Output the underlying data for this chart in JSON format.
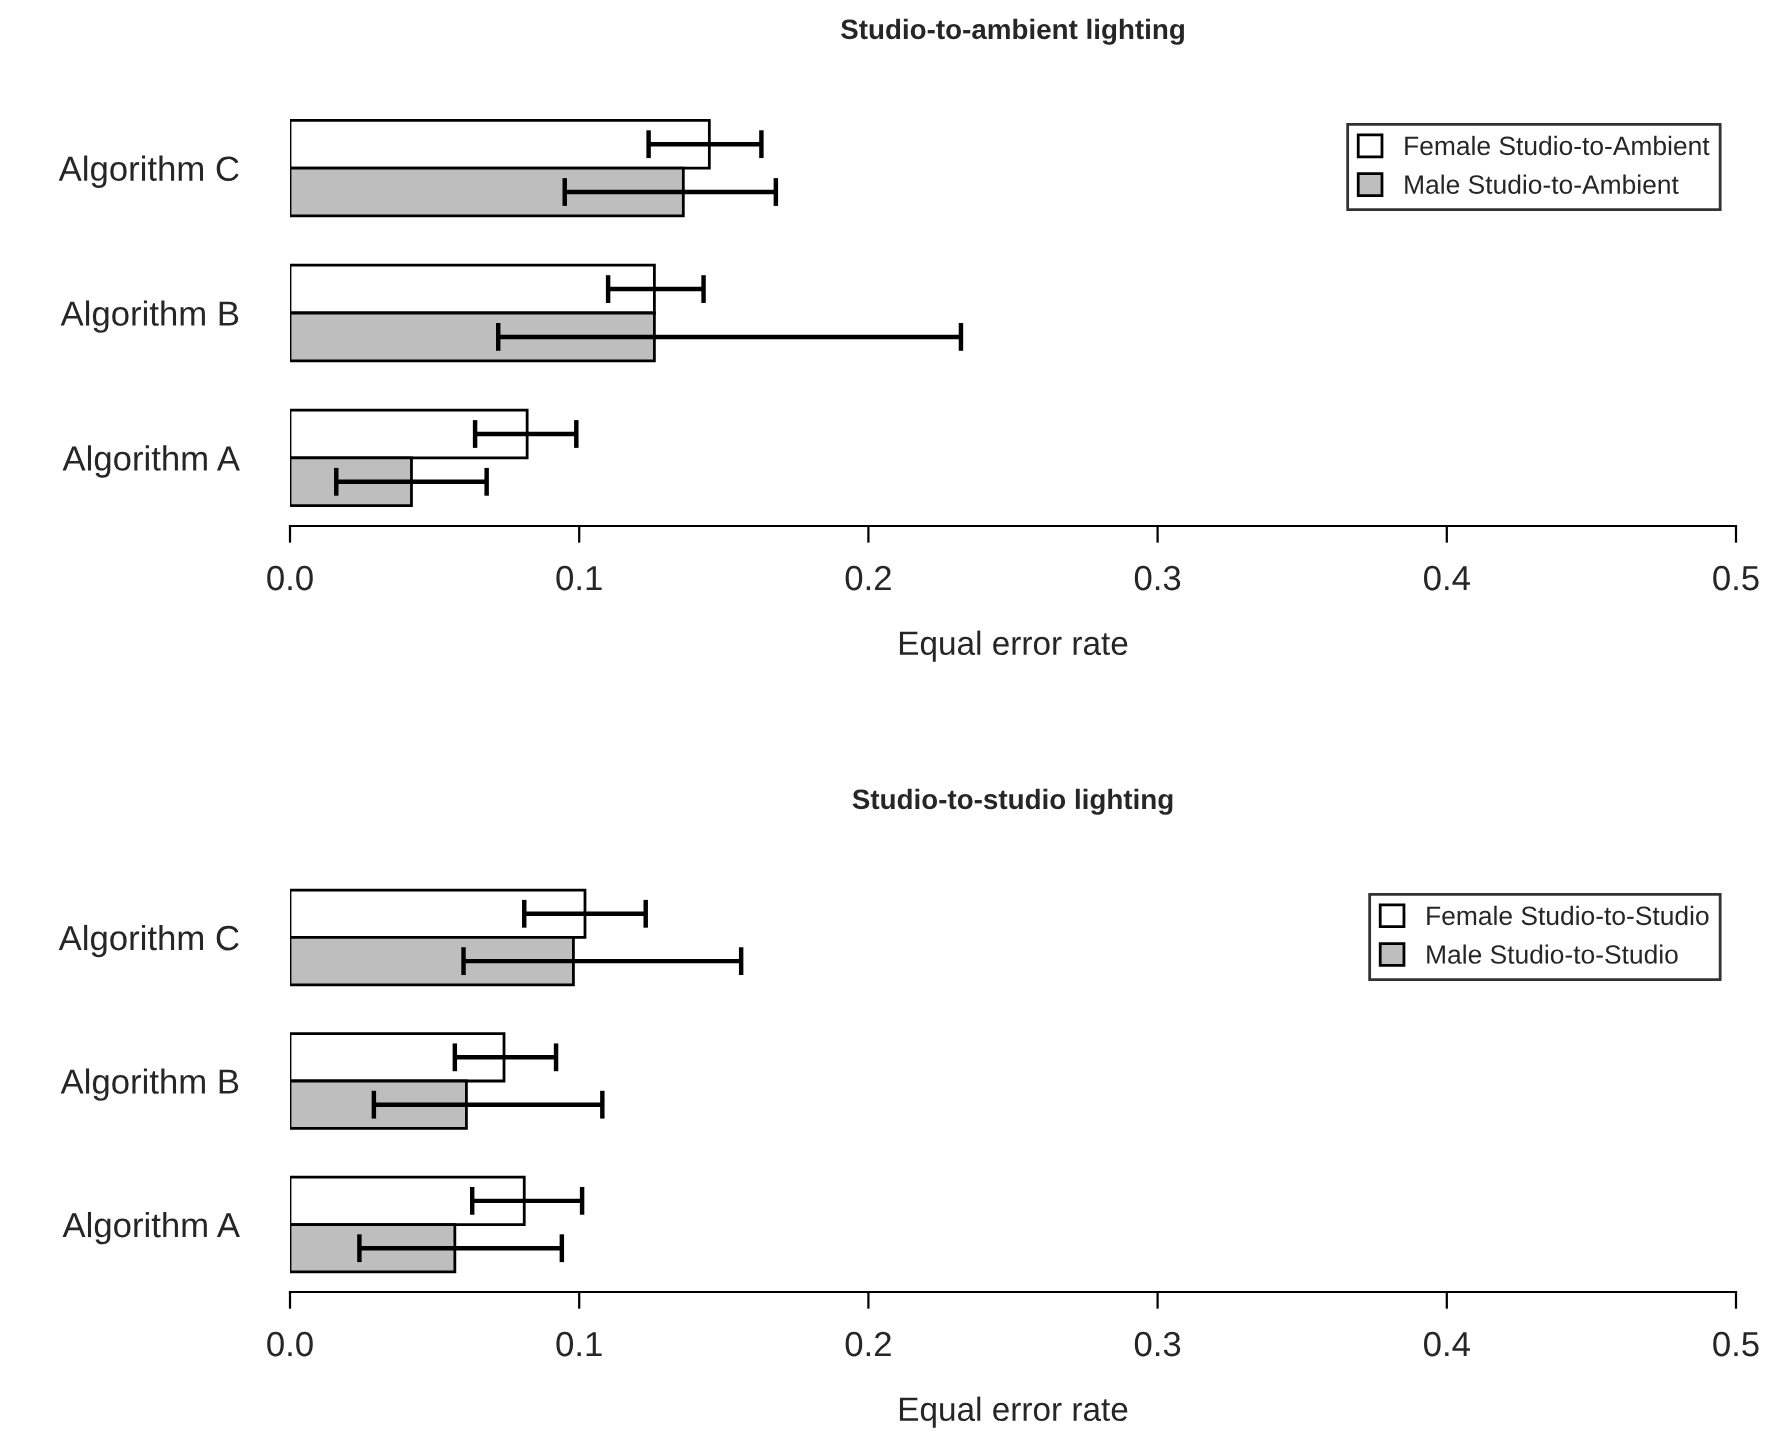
{
  "chart_data": [
    {
      "type": "bar",
      "orientation": "horizontal",
      "title": "Studio-to-ambient lighting",
      "xlabel": "Equal error rate",
      "categories": [
        "Algorithm C",
        "Algorithm B",
        "Algorithm A"
      ],
      "series": [
        {
          "name": "Female Studio-to-Ambient",
          "color": "#ffffff",
          "values": [
            0.145,
            0.126,
            0.082
          ],
          "errors": [
            [
              0.124,
              0.163
            ],
            [
              0.11,
              0.143
            ],
            [
              0.064,
              0.099
            ]
          ]
        },
        {
          "name": "Male Studio-to-Ambient",
          "color": "#bebebe",
          "values": [
            0.136,
            0.126,
            0.042
          ],
          "errors": [
            [
              0.095,
              0.168
            ],
            [
              0.072,
              0.232
            ],
            [
              0.016,
              0.068
            ]
          ]
        }
      ],
      "xlim": [
        0,
        0.5
      ],
      "xticks": [
        {
          "value": 0,
          "label": "0.0"
        },
        0.1,
        0.2,
        0.3,
        0.4,
        0.5
      ],
      "grid": false,
      "legend": "top right"
    },
    {
      "type": "bar",
      "orientation": "horizontal",
      "title": "Studio-to-studio lighting",
      "xlabel": "Equal error rate",
      "categories": [
        "Algorithm C",
        "Algorithm B",
        "Algorithm A"
      ],
      "series": [
        {
          "name": "Female Studio-to-Studio",
          "color": "#ffffff",
          "values": [
            0.102,
            0.074,
            0.081
          ],
          "errors": [
            [
              0.081,
              0.123
            ],
            [
              0.057,
              0.092
            ],
            [
              0.063,
              0.101
            ]
          ]
        },
        {
          "name": "Male Studio-to-Studio",
          "color": "#bebebe",
          "values": [
            0.098,
            0.061,
            0.057
          ],
          "errors": [
            [
              0.06,
              0.156
            ],
            [
              0.029,
              0.108
            ],
            [
              0.024,
              0.094
            ]
          ]
        }
      ],
      "xlim": [
        0,
        0.5
      ],
      "xticks": [
        {
          "value": 0,
          "label": "0.0"
        },
        0.1,
        0.2,
        0.3,
        0.4,
        0.5
      ],
      "grid": false,
      "legend": "top right"
    }
  ]
}
